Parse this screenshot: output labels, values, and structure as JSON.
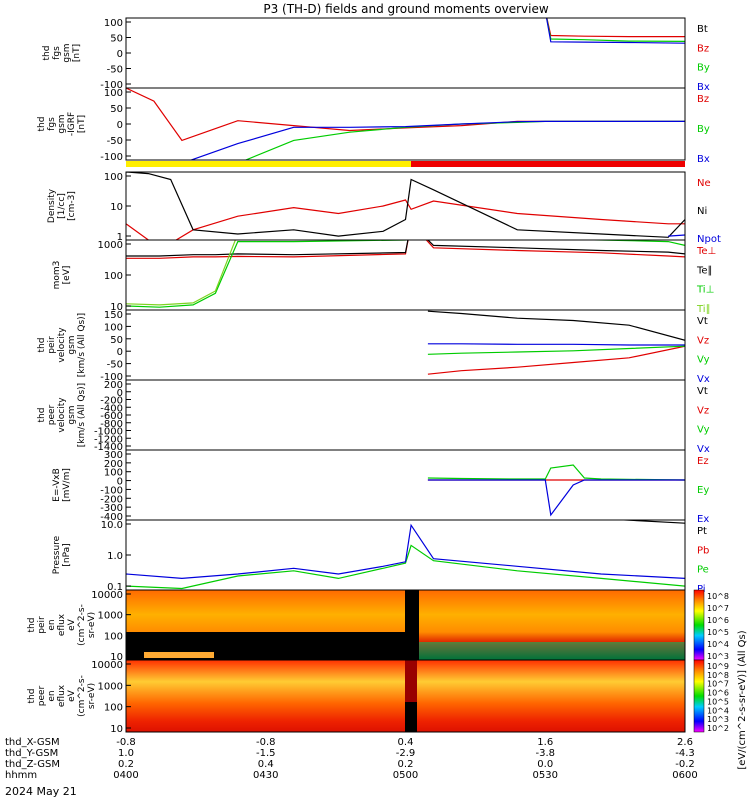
{
  "title": "P3 (TH-D) fields and ground moments overview",
  "date": "2024 May 21",
  "xaxis": {
    "rows": [
      {
        "label": "thd_X-GSM",
        "values": [
          "-0.8",
          "-0.8",
          "0.4",
          "1.6",
          "2.6"
        ]
      },
      {
        "label": "thd_Y-GSM",
        "values": [
          "1.0",
          "-1.5",
          "-2.9",
          "-3.8",
          "-4.3"
        ]
      },
      {
        "label": "thd_Z-GSM",
        "values": [
          "0.2",
          "0.4",
          "0.2",
          "0.0",
          "-0.2"
        ]
      },
      {
        "label": "hhmm",
        "values": [
          "0400",
          "0430",
          "0500",
          "0530",
          "0600"
        ]
      }
    ]
  },
  "colors": {
    "black": "#000000",
    "red": "#e00000",
    "green": "#00cc00",
    "blue": "#0000dd",
    "lightgreen": "#7ed321",
    "yellow": "#ffee00",
    "barred": "#ee0000"
  },
  "chart_data": [
    {
      "type": "line",
      "ylabel": [
        "thd",
        "fgs",
        "gsm",
        "[nT]"
      ],
      "ylim": [
        -100,
        100
      ],
      "ticks": [
        "100",
        "50",
        "0",
        "-50",
        "-100"
      ],
      "series": [
        {
          "name": "Bt",
          "color": "black"
        },
        {
          "name": "Bz",
          "color": "red"
        },
        {
          "name": "By",
          "color": "green"
        },
        {
          "name": "Bx",
          "color": "blue"
        }
      ],
      "x": [
        0,
        0.06,
        0.12,
        0.18,
        0.3,
        0.48,
        0.75,
        0.76,
        0.82,
        0.9,
        1.0
      ],
      "values": {
        "Bz": [
          120,
          120,
          120,
          120,
          120,
          120,
          120,
          50,
          48,
          47,
          47
        ],
        "By": [
          120,
          120,
          120,
          120,
          120,
          120,
          120,
          40,
          38,
          34,
          33
        ],
        "Bx": [
          120,
          120,
          120,
          120,
          120,
          120,
          120,
          32,
          31,
          30,
          28
        ]
      }
    },
    {
      "type": "line",
      "ylabel": [
        "thd",
        "fgs",
        "gsm",
        "-IGRF",
        "[nT]"
      ],
      "ylim": [
        -120,
        100
      ],
      "ticks": [
        "100",
        "50",
        "0",
        "-50",
        "-100"
      ],
      "series": [
        {
          "name": "Bz",
          "color": "red"
        },
        {
          "name": "By",
          "color": "green"
        },
        {
          "name": "Bx",
          "color": "blue"
        }
      ],
      "x": [
        0,
        0.05,
        0.1,
        0.2,
        0.3,
        0.4,
        0.5,
        0.6,
        0.7,
        0.75,
        0.76,
        0.8,
        0.9,
        1.0
      ],
      "values": {
        "Bz": [
          100,
          60,
          -60,
          0,
          -15,
          -30,
          -22,
          -15,
          -2,
          -2,
          -2,
          -2,
          -2,
          -2
        ],
        "By": [
          -130,
          -130,
          -130,
          -130,
          -60,
          -35,
          -20,
          -10,
          -5,
          -2,
          -2,
          -2,
          -2,
          -2
        ],
        "Bx": [
          -130,
          -130,
          -130,
          -70,
          -20,
          -20,
          -18,
          -10,
          -3,
          -2,
          -2,
          -2,
          -2,
          -2
        ]
      }
    },
    {
      "type": "line",
      "ylabel": [
        "Density",
        "[1/cc]",
        "[cm-3]"
      ],
      "ylim": [
        1,
        100
      ],
      "log": true,
      "ticks": [
        "100",
        "10",
        "1"
      ],
      "series": [
        {
          "name": "Ne",
          "color": "red"
        },
        {
          "name": "Ni",
          "color": "black"
        },
        {
          "name": "Npot",
          "color": "blue"
        }
      ],
      "x": [
        0,
        0.04,
        0.08,
        0.12,
        0.2,
        0.3,
        0.38,
        0.46,
        0.5,
        0.51,
        0.55,
        0.7,
        0.85,
        0.97,
        1.0
      ],
      "values": {
        "Ne": [
          3,
          1,
          0.8,
          2,
          5,
          9,
          6,
          10,
          15,
          8,
          14,
          6,
          4,
          3,
          3
        ],
        "Ni": [
          100,
          90,
          60,
          2,
          1.5,
          2,
          1.3,
          1.8,
          4,
          60,
          30,
          2,
          1.5,
          1.2,
          4
        ],
        "Npot": [
          null,
          null,
          null,
          null,
          null,
          null,
          null,
          null,
          null,
          null,
          null,
          null,
          null,
          1.3,
          1.4
        ]
      }
    },
    {
      "type": "line",
      "ylabel": [
        "mom3",
        "[eV]"
      ],
      "ylim": [
        10,
        1000
      ],
      "log": true,
      "ticks": [
        "1000",
        "100",
        "10"
      ],
      "series": [
        {
          "name": "Te⊥",
          "color": "red"
        },
        {
          "name": "Te∥",
          "color": "black"
        },
        {
          "name": "Ti⊥",
          "color": "green"
        },
        {
          "name": "Ti∥",
          "color": "lightgreen"
        }
      ],
      "x": [
        0,
        0.06,
        0.12,
        0.16,
        0.2,
        0.3,
        0.5,
        0.51,
        0.55,
        0.7,
        0.85,
        0.97,
        1.0
      ],
      "values": {
        "Te⊥": [
          300,
          300,
          330,
          330,
          340,
          330,
          400,
          3000,
          600,
          500,
          430,
          350,
          330
        ],
        "Te∥": [
          350,
          350,
          380,
          380,
          400,
          380,
          440,
          3000,
          700,
          600,
          500,
          450,
          400
        ],
        "Ti⊥": [
          13,
          12,
          14,
          30,
          900,
          900,
          1000,
          2000,
          1200,
          1100,
          1000,
          900,
          700
        ],
        "Ti∥": [
          15,
          14,
          16,
          35,
          1500,
          1500,
          1700,
          2500,
          1800,
          1700,
          1500,
          1300,
          1000
        ]
      }
    },
    {
      "type": "line",
      "ylabel": [
        "thd",
        "peir",
        "velocity",
        "gsm",
        "[km/s (All Qs)]"
      ],
      "ylim": [
        -150,
        150
      ],
      "ticks": [
        "150",
        "100",
        "50",
        "0",
        "-50",
        "-100"
      ],
      "series": [
        {
          "name": "Vt",
          "color": "black"
        },
        {
          "name": "Vz",
          "color": "red"
        },
        {
          "name": "Vy",
          "color": "green"
        },
        {
          "name": "Vx",
          "color": "blue"
        }
      ],
      "x": [
        0.54,
        0.6,
        0.7,
        0.8,
        0.9,
        1.0
      ],
      "values": {
        "Vt": [
          145,
          135,
          115,
          105,
          85,
          20
        ],
        "Vz": [
          -125,
          -110,
          -95,
          -75,
          -55,
          -5
        ],
        "Vy": [
          -40,
          -35,
          -30,
          -25,
          -15,
          -5
        ],
        "Vx": [
          5,
          5,
          3,
          3,
          0,
          0
        ]
      }
    },
    {
      "type": "line",
      "ylabel": [
        "thd",
        "peer",
        "velocity",
        "gsm",
        "[km/s (All Qs)]"
      ],
      "ylim": [
        -1400,
        200
      ],
      "ticks": [
        "200",
        "0",
        "-200",
        "-400",
        "-600",
        "-800",
        "-1000",
        "-1200",
        "-1400"
      ],
      "series": [
        {
          "name": "Vt",
          "color": "black"
        },
        {
          "name": "Vz",
          "color": "red"
        },
        {
          "name": "Vy",
          "color": "green"
        },
        {
          "name": "Vx",
          "color": "blue"
        }
      ],
      "x": [],
      "values": {}
    },
    {
      "type": "line",
      "ylabel": [
        "E=-VxB",
        "[mV/m]"
      ],
      "ylim": [
        -400,
        300
      ],
      "ticks": [
        "300",
        "200",
        "100",
        "0",
        "-100",
        "-200",
        "-300",
        "-400"
      ],
      "series": [
        {
          "name": "Ez",
          "color": "red"
        },
        {
          "name": "Ey",
          "color": "green"
        },
        {
          "name": "Ex",
          "color": "blue"
        }
      ],
      "x": [
        0.54,
        0.6,
        0.7,
        0.75,
        0.76,
        0.8,
        0.82,
        0.85,
        1.0
      ],
      "values": {
        "Ez": [
          0,
          0,
          0,
          0,
          0,
          0,
          0,
          0,
          0
        ],
        "Ey": [
          20,
          15,
          10,
          10,
          120,
          150,
          20,
          10,
          0
        ],
        "Ex": [
          0,
          0,
          0,
          0,
          -350,
          -50,
          0,
          0,
          0
        ]
      }
    },
    {
      "type": "line",
      "ylabel": [
        "Pressure",
        "[nPa]"
      ],
      "ylim": [
        0.07,
        40
      ],
      "log": true,
      "ticks": [
        "10.0",
        "1.0",
        "0.1"
      ],
      "series": [
        {
          "name": "Pt",
          "color": "black"
        },
        {
          "name": "Pb",
          "color": "red"
        },
        {
          "name": "Pe",
          "color": "green"
        },
        {
          "name": "Pi",
          "color": "blue"
        }
      ],
      "x": [
        0,
        0.1,
        0.2,
        0.3,
        0.38,
        0.46,
        0.5,
        0.51,
        0.55,
        0.7,
        0.85,
        1.0
      ],
      "values": {
        "Pt": [
          null,
          null,
          null,
          null,
          null,
          null,
          null,
          null,
          null,
          null,
          45,
          30
        ],
        "Pe": [
          0.1,
          0.08,
          0.25,
          0.4,
          0.2,
          0.5,
          0.8,
          4,
          1.0,
          0.4,
          0.2,
          0.1
        ],
        "Pi": [
          0.3,
          0.2,
          0.3,
          0.5,
          0.3,
          0.6,
          0.9,
          25,
          1.2,
          0.6,
          0.3,
          0.2
        ]
      }
    },
    {
      "type": "heatmap",
      "ylabel": [
        "thd",
        "peir",
        "en",
        "eflux",
        "eV",
        "(cm^2-s-",
        "sr-eV)"
      ],
      "ylim": [
        5,
        25000
      ],
      "log": true,
      "ticks": [
        "10000",
        "1000",
        "100",
        "10"
      ],
      "colorbar": {
        "label": "[eV/(cm^2-s-sr-eV)] (All Qs)",
        "ticks": [
          "10^8",
          "10^7",
          "10^6",
          "10^5",
          "10^4",
          "10^3"
        ]
      }
    },
    {
      "type": "heatmap",
      "ylabel": [
        "thd",
        "peer",
        "en",
        "eflux",
        "eV",
        "(cm^2-s-",
        "sr-eV)"
      ],
      "ylim": [
        5,
        25000
      ],
      "log": true,
      "ticks": [
        "10000",
        "1000",
        "100",
        "10"
      ],
      "colorbar": {
        "label": "[eV/(cm^2-s-sr-eV)] (All Qs)",
        "ticks": [
          "10^9",
          "10^8",
          "10^7",
          "10^6",
          "10^5",
          "10^4",
          "10^3",
          "10^2"
        ]
      }
    }
  ]
}
